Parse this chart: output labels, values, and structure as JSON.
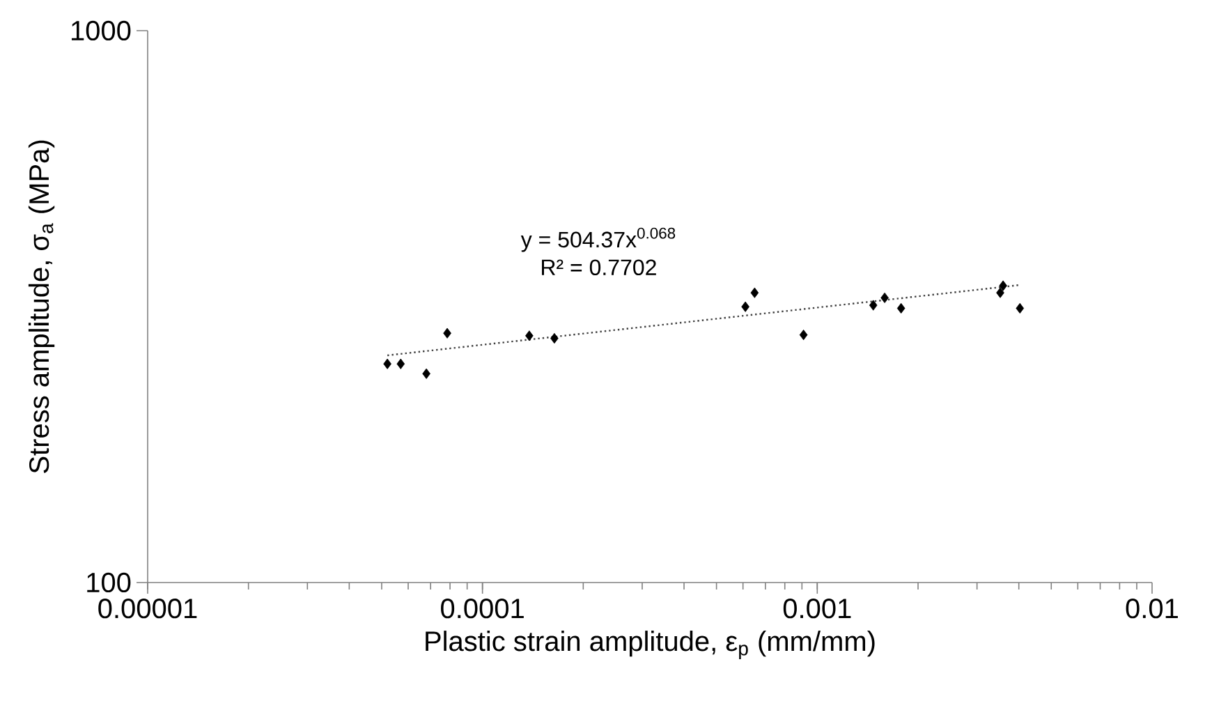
{
  "chart_data": {
    "type": "scatter",
    "xlabel": "Plastic strain amplitude, ε$_{p}$ (mm/mm)",
    "ylabel": "Stress amplitude, σ$_{a}$ (MPa)",
    "annotations": [
      "y = 504.37x$^{0.068}$",
      "R² = 0.7702"
    ],
    "log": "xy",
    "marker": "diamond",
    "xlim": [
      1e-05,
      0.01
    ],
    "ylim": [
      100,
      1000
    ],
    "xticks": [
      {
        "value": 1e-05,
        "label": "0.00001"
      },
      {
        "value": 0.0001,
        "label": "0.0001"
      },
      {
        "value": 0.001,
        "label": "0.001"
      },
      {
        "value": 0.01,
        "label": "0.01"
      }
    ],
    "yticks": [
      100,
      1000
    ],
    "series": [
      {
        "color": "#000000",
        "x": [
          5.2e-05,
          5.7e-05,
          6.8e-05,
          7.85e-05,
          0.000138,
          0.000164,
          0.00061,
          0.00065,
          0.00091,
          0.00147,
          0.00159,
          0.00178,
          0.00352,
          0.00359,
          0.00403
        ],
        "values": [
          249,
          249,
          239,
          283,
          280,
          277,
          316,
          335,
          281,
          318,
          328,
          314,
          335,
          345,
          314
        ]
      },
      {
        "type": "line",
        "color": "#404040",
        "line_style": "dotted",
        "marker": "none",
        "x": [
          5.2e-05,
          0.00403
        ],
        "values": [
          258,
          346
        ]
      }
    ]
  }
}
